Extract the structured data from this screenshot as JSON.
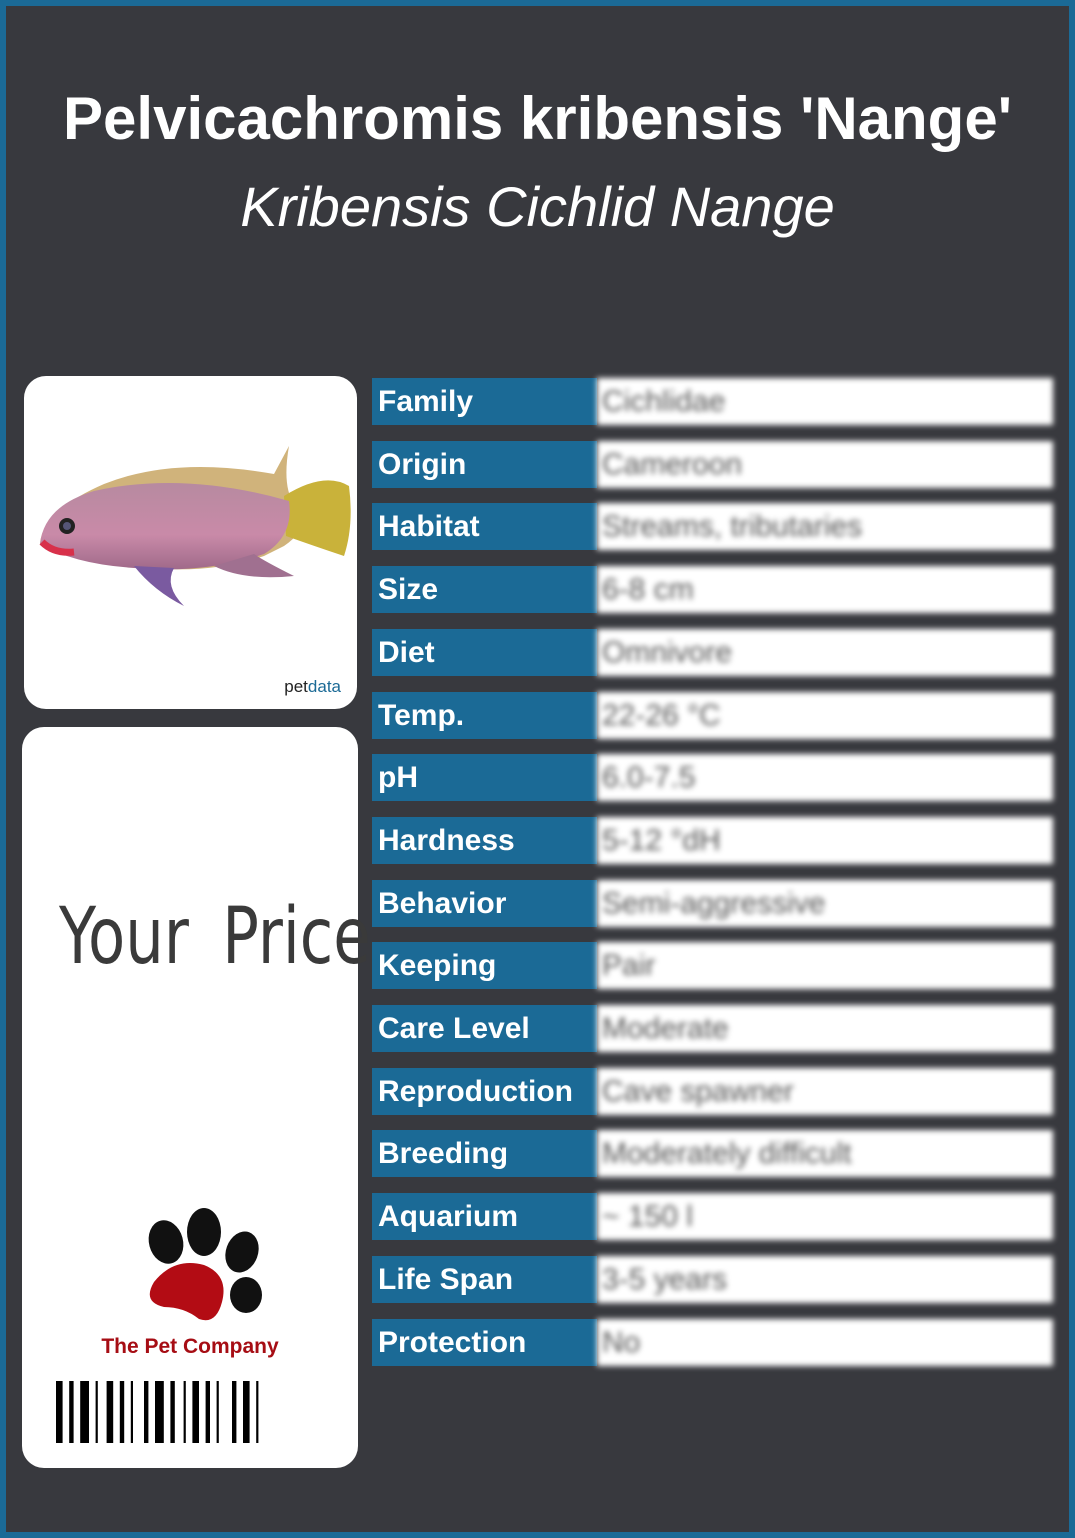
{
  "header": {
    "title": "Pelvicachromis kribensis 'Nange'",
    "subtitle": "Kribensis Cichlid Nange"
  },
  "photo_card": {
    "logo_text_1": "pet",
    "logo_text_2": "data"
  },
  "price_card": {
    "price_label": "Your Price",
    "company": "The Pet Company"
  },
  "colors": {
    "background": "#38393e",
    "accent_blue": "#1b6a96",
    "brand_red": "#a60d14"
  },
  "facts": [
    {
      "label": "Family",
      "value": "Cichlidae"
    },
    {
      "label": "Origin",
      "value": "Cameroon"
    },
    {
      "label": "Habitat",
      "value": "Streams, tributaries"
    },
    {
      "label": "Size",
      "value": "6-8 cm"
    },
    {
      "label": "Diet",
      "value": "Omnivore"
    },
    {
      "label": "Temp.",
      "value": "22-26 °C"
    },
    {
      "label": "pH",
      "value": "6.0-7.5"
    },
    {
      "label": "Hardness",
      "value": "5-12 °dH"
    },
    {
      "label": "Behavior",
      "value": "Semi-aggressive"
    },
    {
      "label": "Keeping",
      "value": "Pair"
    },
    {
      "label": "Care Level",
      "value": "Moderate"
    },
    {
      "label": "Reproduction",
      "value": "Cave spawner"
    },
    {
      "label": "Breeding",
      "value": "Moderately difficult"
    },
    {
      "label": "Aquarium",
      "value": "~ 150 l"
    },
    {
      "label": "Life Span",
      "value": "3-5 years"
    },
    {
      "label": "Protection",
      "value": "No"
    }
  ]
}
